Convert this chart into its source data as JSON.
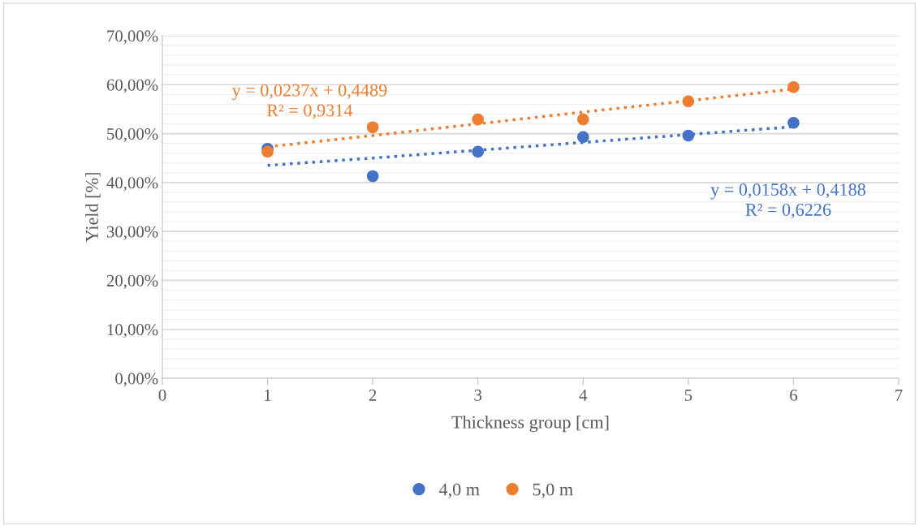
{
  "chart_data": {
    "type": "scatter",
    "xlabel": "Thickness group [cm]",
    "ylabel": "Yield [%]",
    "x": [
      1,
      2,
      3,
      4,
      5,
      6
    ],
    "series": [
      {
        "name": "4,0 m",
        "color": "#4472c4",
        "values": [
          0.469,
          0.413,
          0.463,
          0.493,
          0.496,
          0.522
        ]
      },
      {
        "name": "5,0 m",
        "color": "#ed7d31",
        "values": [
          0.463,
          0.513,
          0.529,
          0.529,
          0.566,
          0.595
        ]
      },
      {
        "type": "line",
        "color": "#4472c4",
        "values": [
          0.435,
          0.45,
          0.466,
          0.482,
          0.498,
          0.514
        ],
        "line_style": "dotted",
        "marker": "none"
      },
      {
        "type": "line",
        "color": "#ed7d31",
        "values": [
          0.473,
          0.496,
          0.52,
          0.544,
          0.567,
          0.591
        ],
        "line_style": "dotted",
        "marker": "none"
      }
    ],
    "annotations": [
      "y = 0,0237x + 0,4489\nR² = 0,9314",
      "y = 0,0158x + 0,4188\nR² = 0,6226"
    ],
    "xlim": [
      0,
      7
    ],
    "xticks": [
      0,
      1,
      2,
      3,
      4,
      5,
      6,
      7
    ],
    "ylim": [
      0,
      0.7
    ],
    "yticks": [
      {
        "value": 0,
        "label": "0,00%"
      },
      {
        "value": 0.1,
        "label": "10,00%"
      },
      {
        "value": 0.2,
        "label": "20,00%"
      },
      {
        "value": 0.3,
        "label": "30,00%"
      },
      {
        "value": 0.4,
        "label": "40,00%"
      },
      {
        "value": 0.5,
        "label": "50,00%"
      },
      {
        "value": 0.6,
        "label": "60,00%"
      },
      {
        "value": 0.7,
        "label": "70,00%"
      }
    ],
    "grid": "y",
    "legend": "bottom",
    "marker": "circle"
  }
}
